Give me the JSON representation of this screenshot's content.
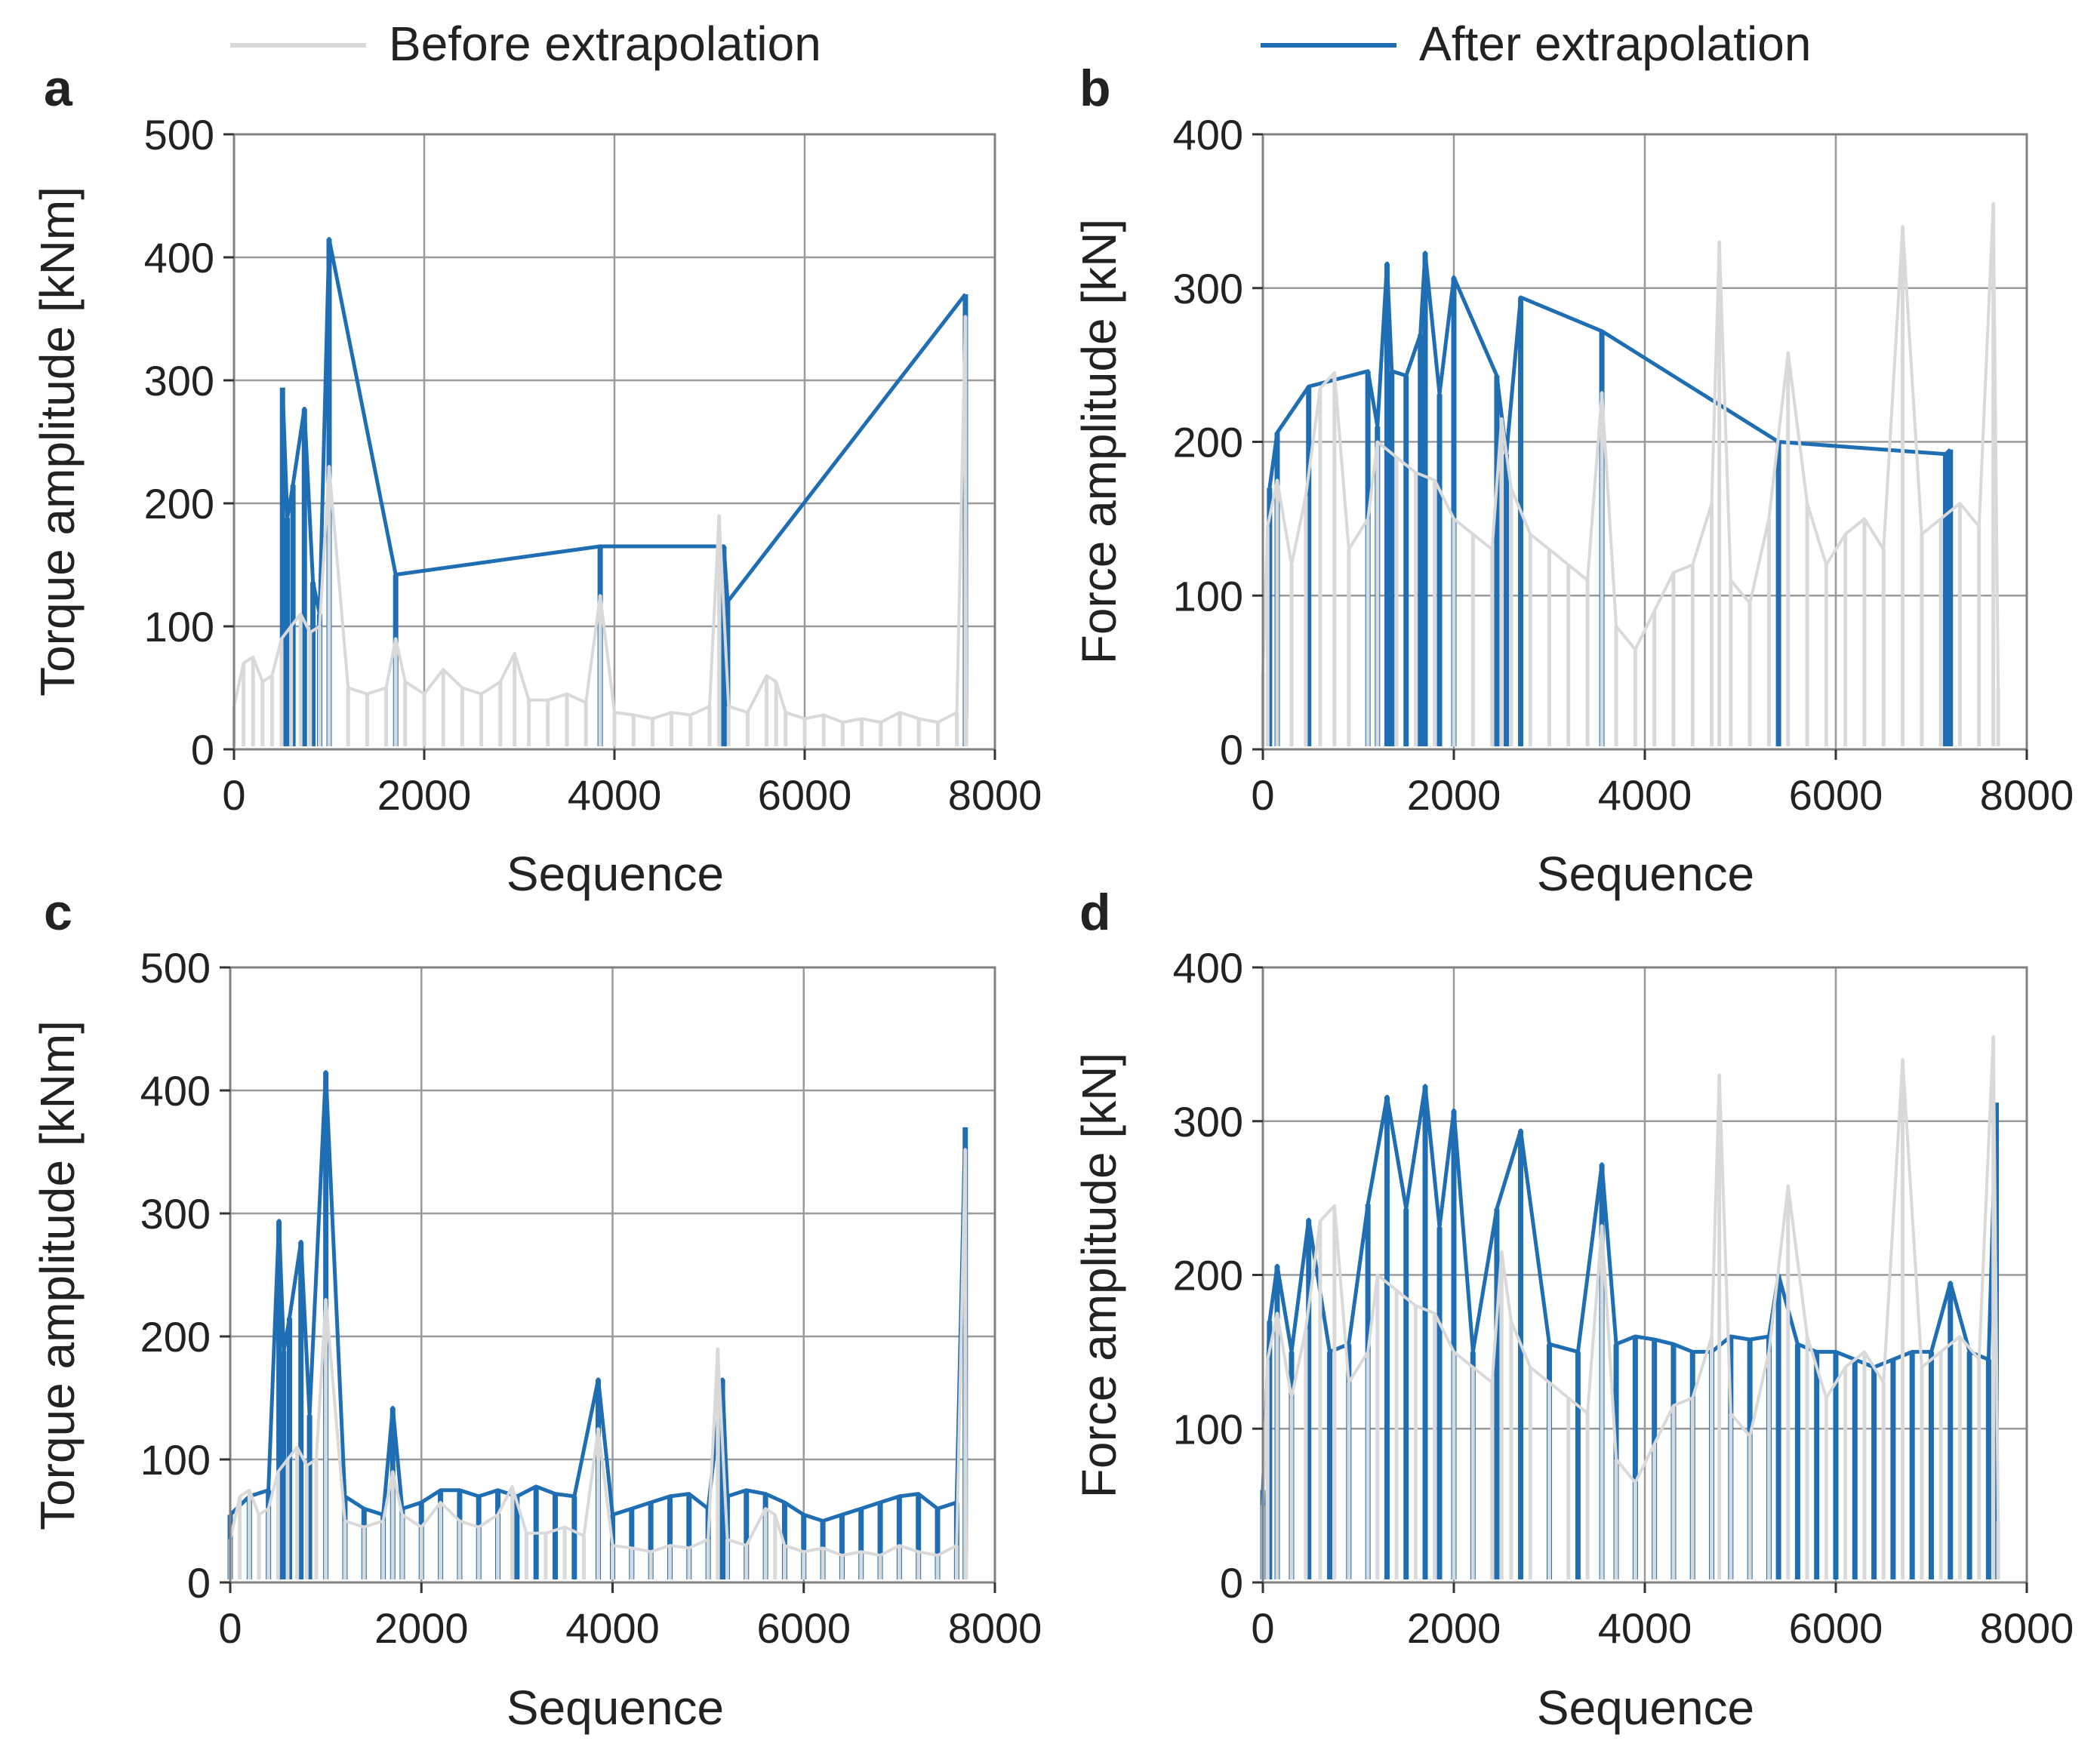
{
  "legend": [
    {
      "name": "Before extrapolation",
      "color": "#d9d9d9"
    },
    {
      "name": "After extrapolation",
      "color": "#1f6eb3"
    }
  ],
  "chart_data": [
    {
      "panel": "a",
      "type": "line",
      "xlabel": "Sequence",
      "ylabel": "Torque amplitude [kNm]",
      "xlim": [
        0,
        8000
      ],
      "ylim": [
        0,
        500
      ],
      "xticks": [
        0,
        2000,
        4000,
        6000,
        8000
      ],
      "yticks": [
        0,
        100,
        200,
        300,
        400,
        500
      ],
      "grid": true,
      "series": [
        {
          "name": "Before extrapolation",
          "x": [
            0,
            100,
            200,
            300,
            400,
            500,
            600,
            700,
            800,
            900,
            1000,
            1200,
            1400,
            1600,
            1700,
            1800,
            2000,
            2200,
            2400,
            2600,
            2800,
            2950,
            3100,
            3300,
            3500,
            3700,
            3850,
            4000,
            4200,
            4400,
            4600,
            4800,
            5000,
            5100,
            5200,
            5400,
            5600,
            5700,
            5800,
            6000,
            6200,
            6400,
            6600,
            6800,
            7000,
            7200,
            7400,
            7600,
            7690,
            7700
          ],
          "y": [
            35,
            70,
            75,
            55,
            60,
            90,
            100,
            110,
            95,
            100,
            230,
            50,
            45,
            50,
            90,
            55,
            45,
            65,
            50,
            45,
            55,
            78,
            40,
            40,
            45,
            38,
            125,
            30,
            28,
            25,
            30,
            28,
            35,
            190,
            35,
            30,
            60,
            55,
            30,
            25,
            28,
            22,
            25,
            22,
            30,
            25,
            22,
            30,
            352,
            25
          ]
        },
        {
          "name": "After extrapolation",
          "x": [
            510,
            560,
            620,
            740,
            830,
            900,
            1000,
            1700,
            3850,
            5150,
            5190,
            7690
          ],
          "y": [
            294,
            188,
            215,
            277,
            136,
            110,
            415,
            142,
            165,
            165,
            120,
            370
          ]
        }
      ]
    },
    {
      "panel": "b",
      "type": "line",
      "xlabel": "Sequence",
      "ylabel": "Force amplitude [kN]",
      "xlim": [
        0,
        8000
      ],
      "ylim": [
        0,
        400
      ],
      "xticks": [
        0,
        2000,
        4000,
        6000,
        8000
      ],
      "yticks": [
        0,
        100,
        200,
        300,
        400
      ],
      "grid": true,
      "series": [
        {
          "name": "Before extrapolation",
          "x": [
            0,
            50,
            150,
            300,
            450,
            600,
            750,
            900,
            1100,
            1200,
            1400,
            1600,
            1800,
            2000,
            2200,
            2400,
            2500,
            2600,
            2800,
            3000,
            3200,
            3400,
            3550,
            3700,
            3900,
            4100,
            4300,
            4500,
            4700,
            4780,
            4900,
            5100,
            5300,
            5500,
            5700,
            5900,
            6100,
            6300,
            6500,
            6700,
            6900,
            7100,
            7300,
            7500,
            7650,
            7700
          ],
          "y": [
            50,
            145,
            175,
            120,
            165,
            235,
            245,
            130,
            150,
            200,
            190,
            180,
            175,
            150,
            140,
            130,
            215,
            170,
            140,
            130,
            120,
            110,
            232,
            80,
            65,
            90,
            115,
            120,
            160,
            330,
            110,
            95,
            150,
            258,
            160,
            120,
            140,
            150,
            130,
            340,
            140,
            150,
            160,
            145,
            355,
            40
          ]
        },
        {
          "name": "After extrapolation",
          "x": [
            70,
            150,
            480,
            1100,
            1200,
            1300,
            1350,
            1500,
            1650,
            1700,
            1850,
            2000,
            2450,
            2550,
            2700,
            3550,
            5400,
            7150,
            7200
          ],
          "y": [
            170,
            206,
            236,
            246,
            210,
            316,
            246,
            243,
            270,
            323,
            231,
            307,
            243,
            192,
            294,
            272,
            200,
            192,
            195
          ]
        }
      ]
    },
    {
      "panel": "c",
      "type": "line",
      "xlabel": "Sequence",
      "ylabel": "Torque amplitude [kNm]",
      "xlim": [
        0,
        8000
      ],
      "ylim": [
        0,
        500
      ],
      "xticks": [
        0,
        2000,
        4000,
        6000,
        8000
      ],
      "yticks": [
        0,
        100,
        200,
        300,
        400,
        500
      ],
      "grid": true,
      "series": [
        {
          "name": "Before extrapolation",
          "x": [
            0,
            100,
            200,
            300,
            400,
            500,
            600,
            700,
            800,
            900,
            1000,
            1200,
            1400,
            1600,
            1700,
            1800,
            2000,
            2200,
            2400,
            2600,
            2800,
            2950,
            3100,
            3300,
            3500,
            3700,
            3850,
            4000,
            4200,
            4400,
            4600,
            4800,
            5000,
            5100,
            5200,
            5400,
            5600,
            5700,
            5800,
            6000,
            6200,
            6400,
            6600,
            6800,
            7000,
            7200,
            7400,
            7600,
            7690,
            7700
          ],
          "y": [
            35,
            70,
            75,
            55,
            60,
            90,
            100,
            110,
            95,
            100,
            230,
            50,
            45,
            50,
            90,
            55,
            45,
            65,
            50,
            45,
            55,
            78,
            40,
            40,
            45,
            38,
            125,
            30,
            28,
            25,
            30,
            28,
            35,
            190,
            35,
            30,
            60,
            55,
            30,
            25,
            28,
            22,
            25,
            22,
            30,
            25,
            22,
            30,
            352,
            25
          ]
        },
        {
          "name": "After extrapolation",
          "x": [
            0,
            200,
            400,
            510,
            560,
            620,
            740,
            830,
            1000,
            1200,
            1400,
            1600,
            1700,
            1800,
            2000,
            2200,
            2400,
            2600,
            2800,
            3000,
            3200,
            3400,
            3600,
            3850,
            4000,
            4200,
            4400,
            4600,
            4800,
            5000,
            5150,
            5200,
            5400,
            5600,
            5800,
            6000,
            6200,
            6400,
            6600,
            6800,
            7000,
            7200,
            7400,
            7600,
            7690
          ],
          "y": [
            55,
            70,
            75,
            294,
            188,
            215,
            277,
            136,
            415,
            70,
            60,
            55,
            142,
            60,
            65,
            75,
            75,
            70,
            75,
            70,
            78,
            72,
            70,
            165,
            55,
            60,
            65,
            70,
            72,
            60,
            165,
            70,
            75,
            72,
            65,
            55,
            50,
            55,
            60,
            65,
            70,
            72,
            60,
            65,
            370
          ]
        }
      ]
    },
    {
      "panel": "d",
      "type": "line",
      "xlabel": "Sequence",
      "ylabel": "Force amplitude [kN]",
      "xlim": [
        0,
        8000
      ],
      "ylim": [
        0,
        400
      ],
      "xticks": [
        0,
        2000,
        4000,
        6000,
        8000
      ],
      "yticks": [
        0,
        100,
        200,
        300,
        400
      ],
      "grid": true,
      "series": [
        {
          "name": "Before extrapolation",
          "x": [
            0,
            50,
            150,
            300,
            450,
            600,
            750,
            900,
            1100,
            1200,
            1400,
            1600,
            1800,
            2000,
            2200,
            2400,
            2500,
            2600,
            2800,
            3000,
            3200,
            3400,
            3550,
            3700,
            3900,
            4100,
            4300,
            4500,
            4700,
            4780,
            4900,
            5100,
            5300,
            5500,
            5700,
            5900,
            6100,
            6300,
            6500,
            6700,
            6900,
            7100,
            7300,
            7500,
            7650,
            7700
          ],
          "y": [
            50,
            145,
            175,
            120,
            165,
            235,
            245,
            130,
            150,
            200,
            190,
            180,
            175,
            150,
            140,
            130,
            215,
            170,
            140,
            130,
            120,
            110,
            232,
            80,
            65,
            90,
            115,
            120,
            160,
            330,
            110,
            95,
            150,
            258,
            160,
            120,
            140,
            150,
            130,
            340,
            140,
            150,
            160,
            145,
            355,
            40
          ]
        },
        {
          "name": "After extrapolation",
          "x": [
            0,
            70,
            150,
            300,
            480,
            700,
            900,
            1100,
            1300,
            1500,
            1700,
            1850,
            2000,
            2200,
            2450,
            2700,
            3000,
            3300,
            3550,
            3700,
            3900,
            4100,
            4300,
            4500,
            4700,
            4900,
            5100,
            5300,
            5400,
            5600,
            5800,
            6000,
            6200,
            6400,
            6600,
            6800,
            7000,
            7200,
            7400,
            7600,
            7680
          ],
          "y": [
            60,
            170,
            206,
            150,
            236,
            150,
            155,
            246,
            316,
            243,
            323,
            231,
            307,
            150,
            243,
            294,
            155,
            150,
            272,
            155,
            160,
            158,
            155,
            150,
            150,
            160,
            158,
            160,
            200,
            155,
            150,
            150,
            145,
            140,
            145,
            150,
            150,
            195,
            150,
            145,
            312
          ]
        }
      ]
    }
  ]
}
